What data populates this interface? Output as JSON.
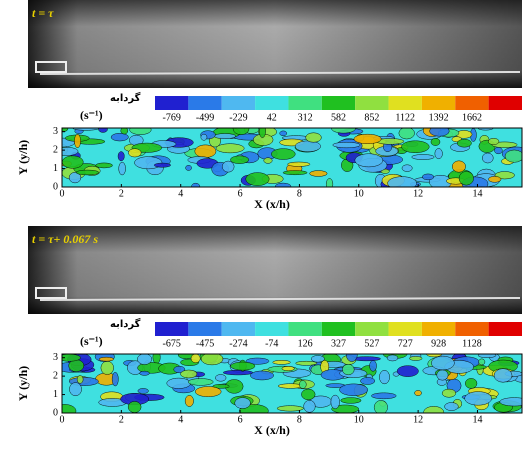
{
  "panels": [
    {
      "time_label": "t = τ",
      "colorbar_title": "گردابه",
      "colorbar_unit": "(s⁻¹)",
      "colorbar_ticks": [
        -769,
        -499,
        -229,
        42,
        312,
        582,
        852,
        1122,
        1392,
        1662
      ],
      "colors": [
        "#2020d0",
        "#2a7ae8",
        "#4fb8f0",
        "#3fe0e0",
        "#40e080",
        "#20c020",
        "#90e040",
        "#e0e020",
        "#f0b000",
        "#f06000",
        "#e00000"
      ],
      "xlabel": "X (x/h)",
      "ylabel": "Y (y/h)",
      "xticks": [
        0,
        2,
        4,
        6,
        8,
        10,
        12,
        14
      ],
      "yticks": [
        0,
        1,
        2,
        3
      ],
      "xlim": [
        0,
        15.5
      ],
      "ylim": [
        0,
        3.2
      ]
    },
    {
      "time_label": "t = τ+ 0.067 s",
      "colorbar_title": "گردابه",
      "colorbar_unit": "(s⁻¹)",
      "colorbar_ticks": [
        -675,
        -475,
        -274,
        -74,
        126,
        327,
        527,
        727,
        928,
        1128
      ],
      "colors": [
        "#2020d0",
        "#2a7ae8",
        "#4fb8f0",
        "#3fe0e0",
        "#40e080",
        "#20c020",
        "#90e040",
        "#e0e020",
        "#f0b000",
        "#f06000",
        "#e00000"
      ],
      "xlabel": "X (x/h)",
      "ylabel": "Y (y/h)",
      "xticks": [
        0,
        2,
        4,
        6,
        8,
        10,
        12,
        14
      ],
      "yticks": [
        0,
        1,
        2,
        3
      ],
      "xlim": [
        0,
        15.5
      ],
      "ylim": [
        0,
        3.2
      ]
    }
  ]
}
